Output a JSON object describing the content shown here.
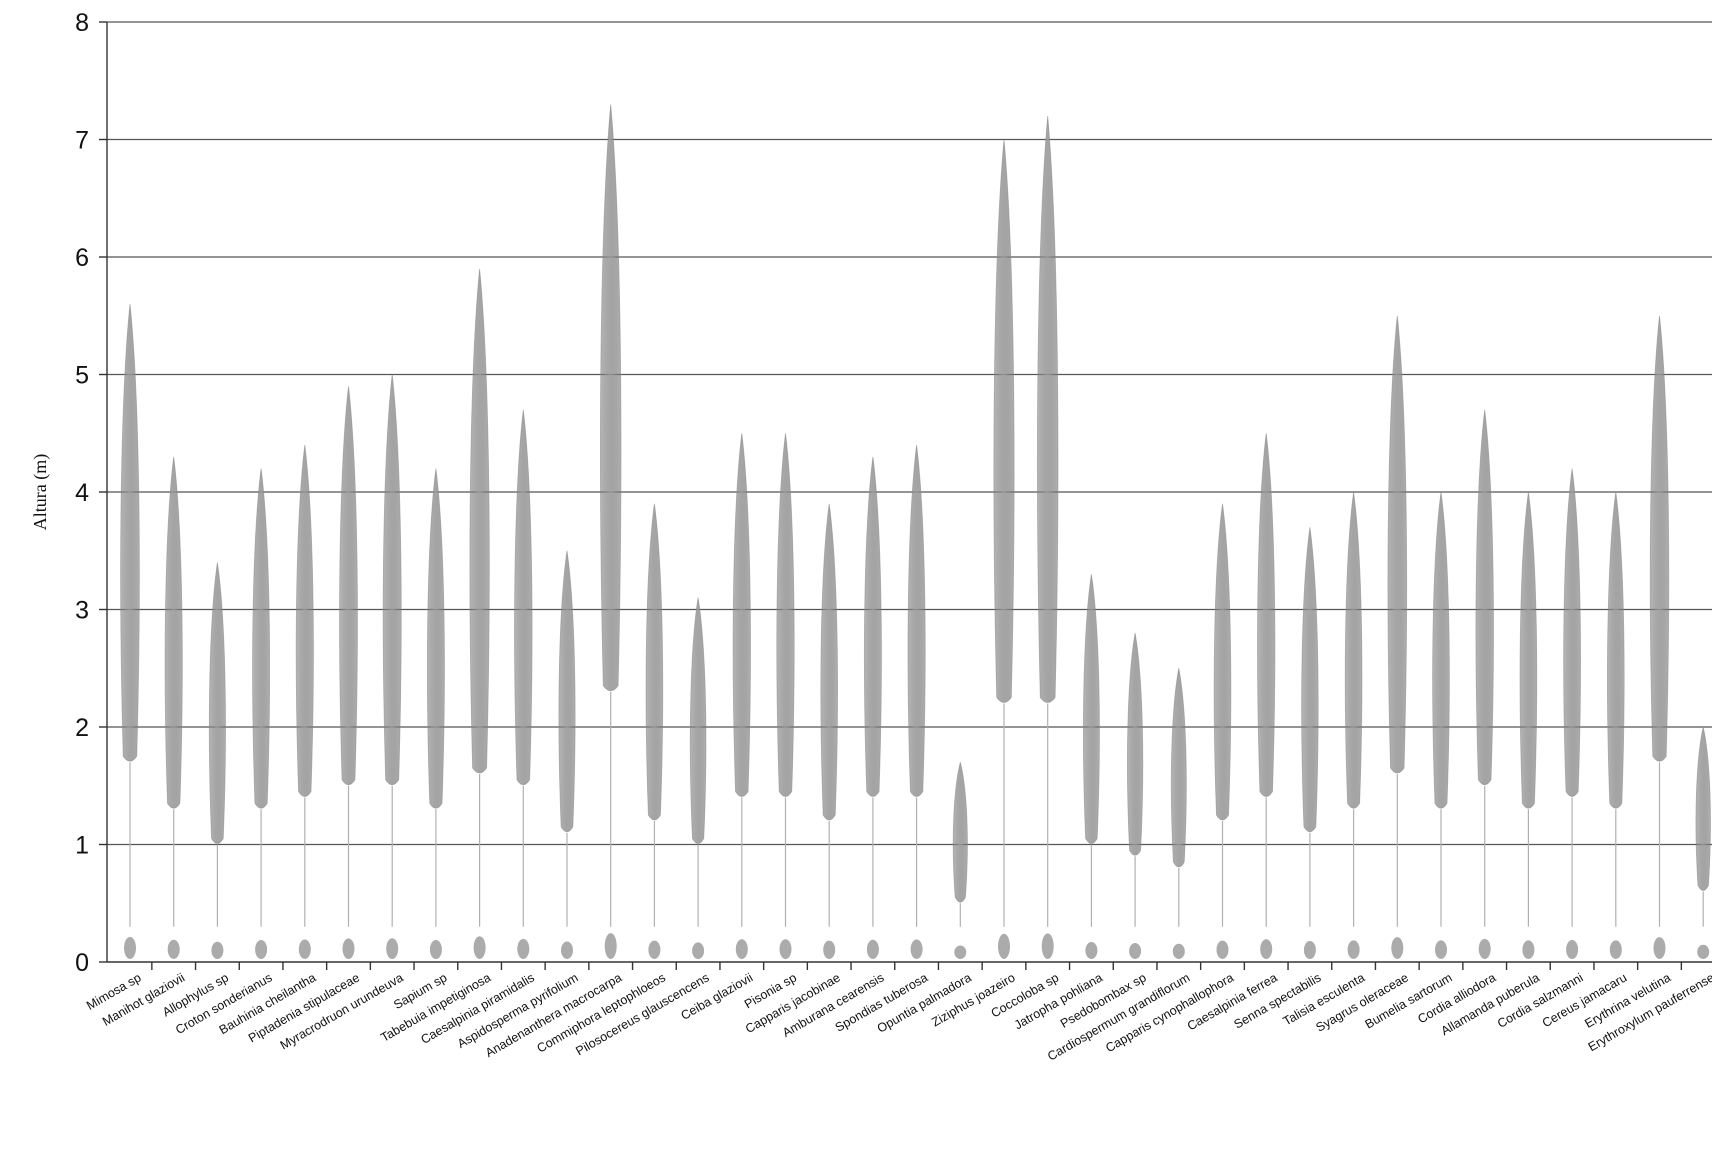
{
  "chart_data": {
    "type": "bar",
    "title": "",
    "xlabel": "",
    "ylabel": "Altura (m)",
    "ylim": [
      0,
      8
    ],
    "yticks": [
      0,
      1,
      2,
      3,
      4,
      5,
      6,
      7,
      8
    ],
    "grid": true,
    "categories": [
      "Mimosa sp",
      "Manihot glaziovii",
      "Allophylus sp",
      "Croton sonderianus",
      "Bauhinia cheilantha",
      "Piptadenia stipulaceae",
      "Myracrodruon urundeuva",
      "Sapium sp",
      "Tabebuia impetiginosa",
      "Caesalpinia piramidalis",
      "Aspidosperma pyrifolium",
      "Anadenanthera macrocarpa",
      "Commiphora leptophloeos",
      "Pilosocereus glauscencens",
      "Ceiba glaziovii",
      "Pisonia sp",
      "Capparis jacobinae",
      "Amburana cearensis",
      "Spondias tuberosa",
      "Opuntia palmadora",
      "Ziziphus joazeiro",
      "Coccoloba sp",
      "Jatropha pohliana",
      "Psedobombax sp",
      "Cardiospermum grandiflorum",
      "Capparis cynophallophora",
      "Caesalpinia ferrea",
      "Senna spectabilis",
      "Talisia esculenta",
      "Syagrus oleraceae",
      "Bumelia sartorum",
      "Cordia alliodora",
      "Allamanda puberula",
      "Cordia salzmanni",
      "Cereus jamacaru",
      "Erythrina velutina",
      "Erythroxylum pauferrense"
    ],
    "series": [
      {
        "values": [
          5.6,
          4.3,
          3.4,
          4.2,
          4.4,
          4.9,
          5.0,
          4.2,
          5.9,
          4.7,
          3.5,
          7.3,
          3.9,
          3.1,
          4.5,
          4.5,
          3.9,
          4.3,
          4.4,
          1.7,
          7.0,
          7.2,
          3.3,
          2.8,
          2.5,
          3.9,
          4.5,
          3.7,
          4.0,
          5.5,
          4.0,
          4.7,
          4.0,
          4.2,
          4.0,
          5.5,
          2.0
        ],
        "crown_base": [
          1.7,
          1.3,
          1.0,
          1.3,
          1.4,
          1.5,
          1.5,
          1.3,
          1.6,
          1.5,
          1.1,
          2.3,
          1.2,
          1.0,
          1.4,
          1.4,
          1.2,
          1.4,
          1.4,
          0.5,
          2.2,
          2.2,
          1.0,
          0.9,
          0.8,
          1.2,
          1.4,
          1.1,
          1.3,
          1.6,
          1.3,
          1.5,
          1.3,
          1.4,
          1.3,
          1.7,
          0.6
        ]
      }
    ],
    "colors": {
      "foliage": "#8a8a8a",
      "stem": "#b0b0b0",
      "grid": "#555555"
    }
  }
}
